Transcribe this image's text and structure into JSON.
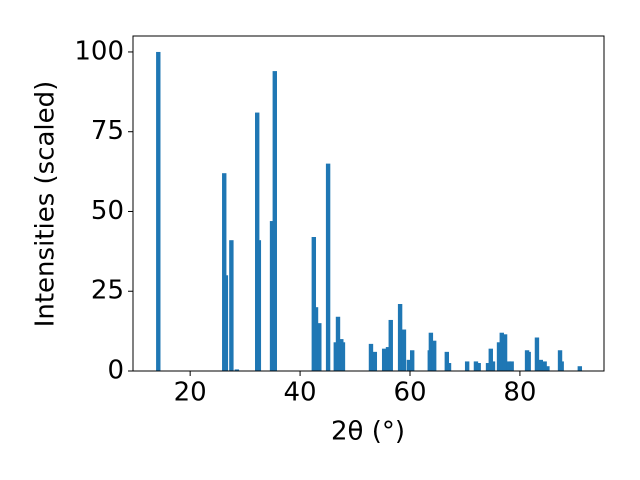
{
  "chart_data": {
    "type": "bar",
    "xlabel": "2θ (°)",
    "ylabel": "Intensities (scaled)",
    "x": [
      14.2,
      26.2,
      26.5,
      27.5,
      28.5,
      32.2,
      32.5,
      34.9,
      35.4,
      42.5,
      42.9,
      43.5,
      45.1,
      46.5,
      46.9,
      47.5,
      47.8,
      52.9,
      53.6,
      55.3,
      56.0,
      56.5,
      58.2,
      58.9,
      59.8,
      60.4,
      63.6,
      63.8,
      64.4,
      66.7,
      67.1,
      70.4,
      72.0,
      72.5,
      74.2,
      74.7,
      75.1,
      76.2,
      76.7,
      77.3,
      78.0,
      78.5,
      81.3,
      81.6,
      83.1,
      83.8,
      84.5,
      85.0,
      87.3,
      87.6,
      90.9
    ],
    "values": [
      100,
      62,
      30,
      41,
      0.5,
      81,
      41,
      47,
      94,
      42,
      20,
      15,
      65,
      9,
      17,
      10,
      9,
      8.5,
      6,
      7,
      7.5,
      16,
      21,
      13,
      3.5,
      6.5,
      6.5,
      12,
      9.5,
      6,
      2.5,
      3,
      3,
      2.5,
      2.5,
      7,
      3,
      9,
      12,
      11.5,
      3,
      3,
      6.5,
      6,
      10.5,
      3.5,
      3,
      1.5,
      6.5,
      3,
      1.5
    ],
    "color": "#1f77b4",
    "xlim": [
      9.6,
      95.3
    ],
    "xticks": [
      20,
      40,
      60,
      80
    ],
    "ylim": [
      0,
      105
    ],
    "yticks": [
      0,
      25,
      50,
      75,
      100
    ]
  }
}
